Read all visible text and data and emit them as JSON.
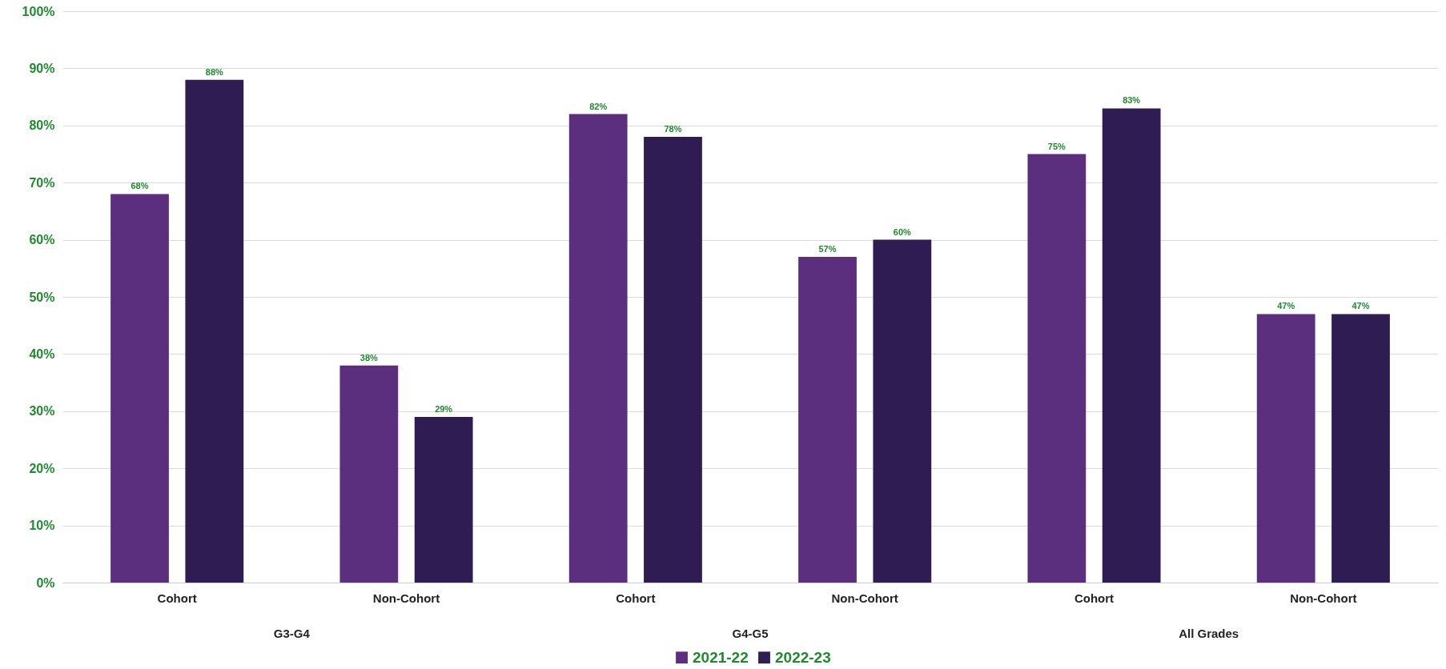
{
  "chart_data": {
    "type": "bar",
    "categories": [
      "Cohort",
      "Non-Cohort",
      "Cohort",
      "Non-Cohort",
      "Cohort",
      "Non-Cohort"
    ],
    "series": [
      {
        "name": "2021-22",
        "color": "#5b2f7d",
        "values": [
          68,
          38,
          82,
          57,
          75,
          47
        ],
        "value_labels": [
          "68%",
          "38%",
          "82%",
          "57%",
          "75%",
          "47%"
        ]
      },
      {
        "name": "2022-23",
        "color": "#2e1c52",
        "values": [
          88,
          29,
          78,
          60,
          83,
          47
        ],
        "value_labels": [
          "88%",
          "29%",
          "78%",
          "60%",
          "83%",
          "47%"
        ]
      }
    ],
    "annotations": [
      "G3-G4",
      "G4-G5",
      "All Grades"
    ],
    "ylim": [
      0,
      100
    ],
    "yticks": [
      {
        "value": 0,
        "label": "0%"
      },
      {
        "value": 10,
        "label": "10%"
      },
      {
        "value": 20,
        "label": "20%"
      },
      {
        "value": 30,
        "label": "30%"
      },
      {
        "value": 40,
        "label": "40%"
      },
      {
        "value": 50,
        "label": "50%"
      },
      {
        "value": 60,
        "label": "60%"
      },
      {
        "value": 70,
        "label": "70%"
      },
      {
        "value": 80,
        "label": "80%"
      },
      {
        "value": 90,
        "label": "90%"
      },
      {
        "value": 100,
        "label": "100%"
      }
    ],
    "grid": "y",
    "legend": "bottom"
  }
}
